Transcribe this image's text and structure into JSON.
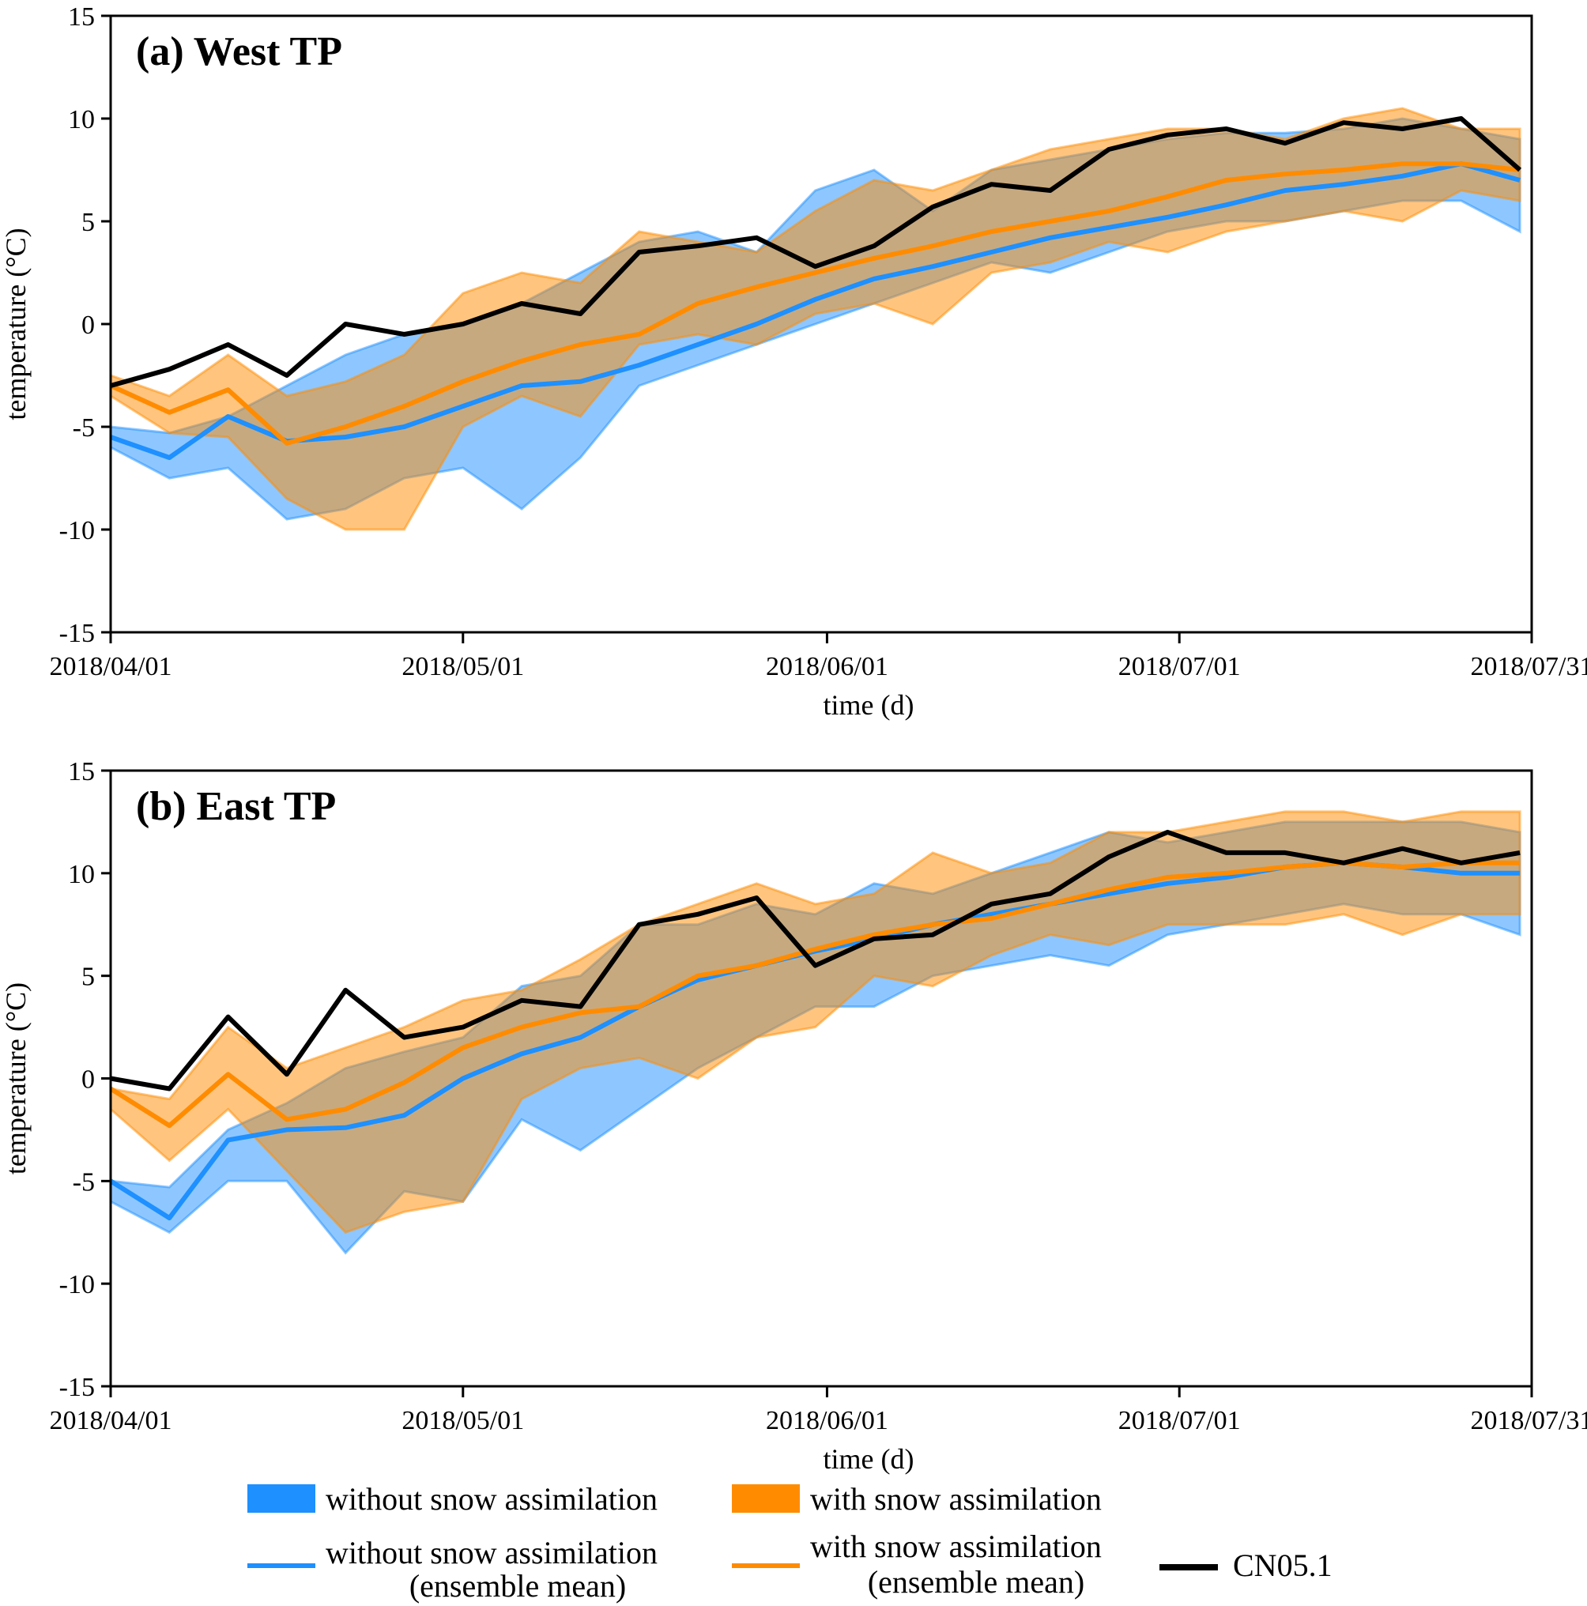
{
  "chart_data": [
    {
      "type": "line",
      "panel": "a",
      "title": "(a) West TP",
      "xlabel": "time (d)",
      "ylabel": "temperature (°C)",
      "ylim": [
        -15,
        15
      ],
      "yticks": [
        -15,
        -10,
        -5,
        0,
        5,
        10,
        15
      ],
      "xlim": [
        "2018/04/01",
        "2018/07/31"
      ],
      "xticks": [
        "2018/04/01",
        "2018/05/01",
        "2018/06/01",
        "2018/07/01",
        "2018/07/31"
      ],
      "x_day_offsets": [
        0,
        5,
        10,
        15,
        20,
        25,
        30,
        35,
        40,
        45,
        50,
        55,
        60,
        65,
        70,
        75,
        80,
        85,
        90,
        95,
        100,
        105,
        110,
        115,
        120
      ],
      "series": [
        {
          "name": "without snow assimilation (range upper)",
          "values": [
            -5.0,
            -5.3,
            -4.5,
            -3.0,
            -1.5,
            -0.5,
            0.0,
            1.0,
            2.5,
            4.0,
            4.5,
            3.5,
            6.5,
            7.5,
            5.5,
            7.5,
            8.0,
            8.5,
            9.0,
            9.3,
            9.3,
            9.5,
            10.0,
            9.5,
            9.0
          ]
        },
        {
          "name": "without snow assimilation (range lower)",
          "values": [
            -6.0,
            -7.5,
            -7.0,
            -9.5,
            -9.0,
            -7.5,
            -7.0,
            -9.0,
            -6.5,
            -3.0,
            -2.0,
            -1.0,
            0.0,
            1.0,
            2.0,
            3.0,
            2.5,
            3.5,
            4.5,
            5.0,
            5.0,
            5.5,
            6.0,
            6.0,
            4.5
          ]
        },
        {
          "name": "with snow assimilation (range upper)",
          "values": [
            -2.5,
            -3.5,
            -1.5,
            -3.5,
            -2.8,
            -1.5,
            1.5,
            2.5,
            2.0,
            4.5,
            4.0,
            3.5,
            5.5,
            7.0,
            6.5,
            7.5,
            8.5,
            9.0,
            9.5,
            9.5,
            9.0,
            10.0,
            10.5,
            9.5,
            9.5
          ]
        },
        {
          "name": "with snow assimilation (range lower)",
          "values": [
            -3.5,
            -5.3,
            -5.5,
            -8.5,
            -10.0,
            -10.0,
            -5.0,
            -3.5,
            -4.5,
            -1.0,
            -0.5,
            -1.0,
            0.5,
            1.0,
            0.0,
            2.5,
            3.0,
            4.0,
            3.5,
            4.5,
            5.0,
            5.5,
            5.0,
            6.5,
            6.0
          ]
        },
        {
          "name": "without snow assimilation (ensemble mean)",
          "values": [
            -5.5,
            -6.5,
            -4.5,
            -5.7,
            -5.5,
            -5.0,
            -4.0,
            -3.0,
            -2.8,
            -2.0,
            -1.0,
            0.0,
            1.2,
            2.2,
            2.8,
            3.5,
            4.2,
            4.7,
            5.2,
            5.8,
            6.5,
            6.8,
            7.2,
            7.8,
            7.0
          ]
        },
        {
          "name": "with snow assimilation (ensemble mean)",
          "values": [
            -3.0,
            -4.3,
            -3.2,
            -5.8,
            -5.0,
            -4.0,
            -2.8,
            -1.8,
            -1.0,
            -0.5,
            1.0,
            1.8,
            2.5,
            3.2,
            3.8,
            4.5,
            5.0,
            5.5,
            6.2,
            7.0,
            7.3,
            7.5,
            7.8,
            7.8,
            7.5
          ]
        },
        {
          "name": "CN05.1",
          "values": [
            -3.0,
            -2.2,
            -1.0,
            -2.5,
            0.0,
            -0.5,
            0.0,
            1.0,
            0.5,
            3.5,
            3.8,
            4.2,
            2.8,
            3.8,
            5.7,
            6.8,
            6.5,
            8.5,
            9.2,
            9.5,
            8.8,
            9.8,
            9.5,
            10.0,
            7.5
          ]
        }
      ]
    },
    {
      "type": "line",
      "panel": "b",
      "title": "(b) East TP",
      "xlabel": "time (d)",
      "ylabel": "temperature (°C)",
      "ylim": [
        -15,
        15
      ],
      "yticks": [
        -15,
        -10,
        -5,
        0,
        5,
        10,
        15
      ],
      "xlim": [
        "2018/04/01",
        "2018/07/31"
      ],
      "xticks": [
        "2018/04/01",
        "2018/05/01",
        "2018/06/01",
        "2018/07/01",
        "2018/07/31"
      ],
      "x_day_offsets": [
        0,
        5,
        10,
        15,
        20,
        25,
        30,
        35,
        40,
        45,
        50,
        55,
        60,
        65,
        70,
        75,
        80,
        85,
        90,
        95,
        100,
        105,
        110,
        115,
        120
      ],
      "series": [
        {
          "name": "without snow assimilation (range upper)",
          "values": [
            -5.0,
            -5.3,
            -2.5,
            -1.2,
            0.5,
            1.3,
            2.0,
            4.5,
            5.0,
            7.5,
            7.5,
            8.5,
            8.0,
            9.5,
            9.0,
            10.0,
            11.0,
            12.0,
            11.5,
            12.0,
            12.5,
            12.5,
            12.5,
            12.5,
            12.0
          ]
        },
        {
          "name": "without snow assimilation (range lower)",
          "values": [
            -6.0,
            -7.5,
            -5.0,
            -5.0,
            -8.5,
            -5.5,
            -6.0,
            -2.0,
            -3.5,
            -1.5,
            0.5,
            2.0,
            3.5,
            3.5,
            5.0,
            5.5,
            6.0,
            5.5,
            7.0,
            7.5,
            8.0,
            8.5,
            8.0,
            8.0,
            7.0
          ]
        },
        {
          "name": "with snow assimilation (range upper)",
          "values": [
            -0.5,
            -1.0,
            2.5,
            0.5,
            1.5,
            2.5,
            3.8,
            4.3,
            5.8,
            7.5,
            8.5,
            9.5,
            8.5,
            9.0,
            11.0,
            10.0,
            10.5,
            12.0,
            12.0,
            12.5,
            13.0,
            13.0,
            12.5,
            13.0,
            13.0
          ]
        },
        {
          "name": "with snow assimilation (range lower)",
          "values": [
            -1.5,
            -4.0,
            -1.5,
            -4.5,
            -7.5,
            -6.5,
            -6.0,
            -1.0,
            0.5,
            1.0,
            0.0,
            2.0,
            2.5,
            5.0,
            4.5,
            6.0,
            7.0,
            6.5,
            7.5,
            7.5,
            7.5,
            8.0,
            7.0,
            8.0,
            8.0
          ]
        },
        {
          "name": "without snow assimilation (ensemble mean)",
          "values": [
            -5.0,
            -6.8,
            -3.0,
            -2.5,
            -2.4,
            -1.8,
            0.0,
            1.2,
            2.0,
            3.5,
            4.8,
            5.5,
            6.2,
            6.8,
            7.5,
            8.0,
            8.5,
            9.0,
            9.5,
            9.8,
            10.3,
            10.5,
            10.3,
            10.0,
            10.0
          ]
        },
        {
          "name": "with snow assimilation (ensemble mean)",
          "values": [
            -0.5,
            -2.3,
            0.2,
            -2.0,
            -1.5,
            -0.2,
            1.5,
            2.5,
            3.2,
            3.5,
            5.0,
            5.5,
            6.3,
            7.0,
            7.5,
            7.8,
            8.5,
            9.2,
            9.8,
            10.0,
            10.3,
            10.5,
            10.3,
            10.5,
            10.5
          ]
        },
        {
          "name": "CN05.1",
          "values": [
            0.0,
            -0.5,
            3.0,
            0.2,
            4.3,
            2.0,
            2.5,
            3.8,
            3.5,
            7.5,
            8.0,
            8.8,
            5.5,
            6.8,
            7.0,
            8.5,
            9.0,
            10.8,
            12.0,
            11.0,
            11.0,
            10.5,
            11.2,
            10.5,
            11.0
          ]
        }
      ]
    }
  ],
  "legend": {
    "items": [
      {
        "label": "without snow assimilation",
        "kind": "patch",
        "color": "#1e90ff"
      },
      {
        "label": "with snow assimilation",
        "kind": "patch",
        "color": "#ff8c00"
      },
      {
        "label_line1": "without snow assimilation",
        "label_line2": "(ensemble mean)",
        "kind": "line",
        "color": "#1e90ff"
      },
      {
        "label_line1": "with snow assimilation",
        "label_line2": "(ensemble mean)",
        "kind": "line",
        "color": "#ff8c00"
      },
      {
        "label": "CN05.1",
        "kind": "line",
        "color": "#000000"
      }
    ],
    "placement": "bottom"
  },
  "colors": {
    "without_fill": "#1e90ff",
    "with_fill": "#ff8c00",
    "cn05": "#000000"
  }
}
